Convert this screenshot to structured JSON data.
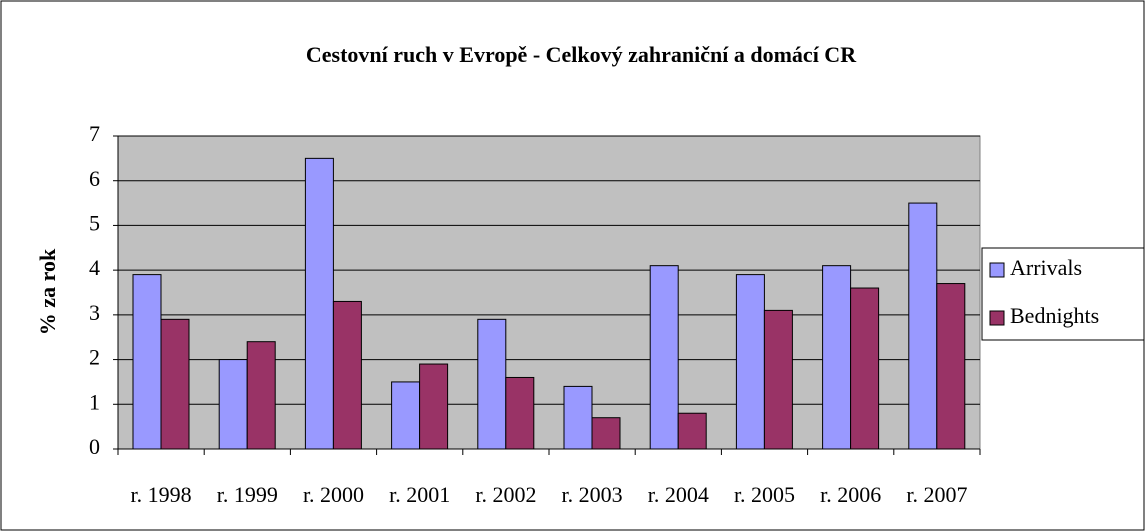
{
  "chart_data": {
    "type": "bar",
    "title": "Cestovní ruch v Evropě - Celkový zahraniční a domácí CR",
    "ylabel": "% za rok",
    "categories": [
      "r. 1998",
      "r. 1999",
      "r. 2000",
      "r. 2001",
      "r. 2002",
      "r. 2003",
      "r. 2004",
      "r. 2005",
      "r. 2006",
      "r. 2007"
    ],
    "series": [
      {
        "name": "Arrivals",
        "color": "#9999ff",
        "values": [
          3.9,
          2.0,
          6.5,
          1.5,
          2.9,
          1.4,
          4.1,
          3.9,
          4.1,
          5.5
        ]
      },
      {
        "name": "Bednights",
        "color": "#993366",
        "values": [
          2.9,
          2.4,
          3.3,
          1.9,
          1.6,
          0.7,
          0.8,
          3.1,
          3.6,
          3.7
        ]
      }
    ],
    "ylim": [
      0,
      7
    ],
    "yticks": [
      0,
      1,
      2,
      3,
      4,
      5,
      6,
      7
    ],
    "grid": true,
    "legend": "right"
  }
}
